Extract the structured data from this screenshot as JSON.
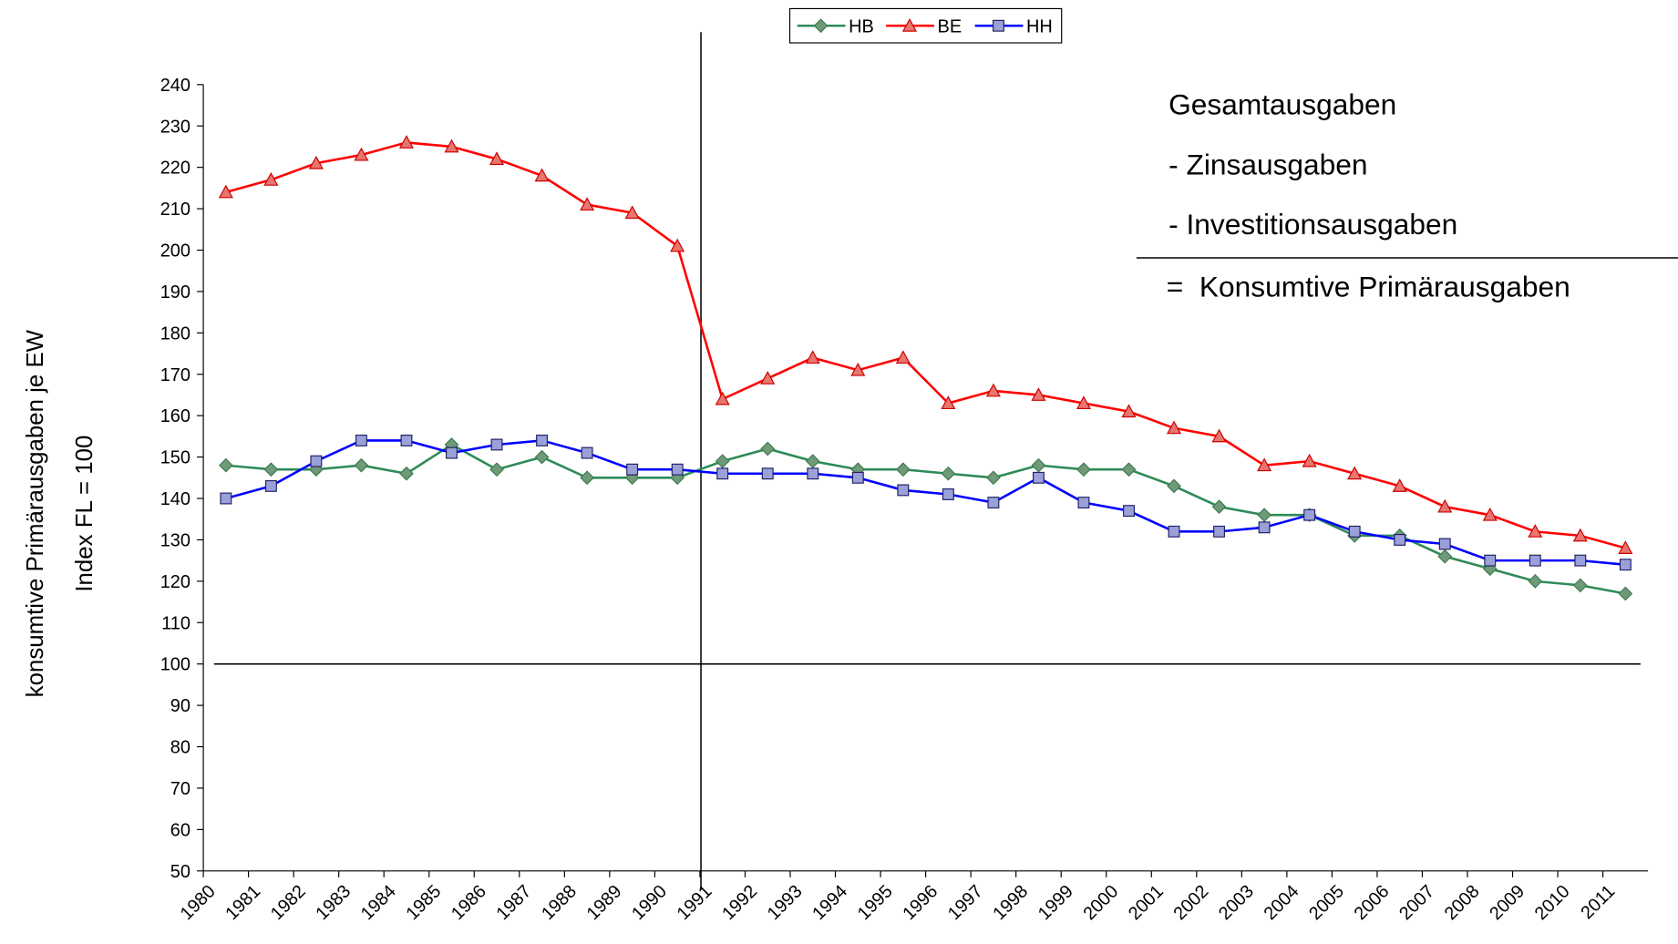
{
  "chart_data": {
    "type": "line",
    "y_label_lines": [
      "konsumtive Primärausgaben je EW",
      "Index FL = 100"
    ],
    "annotations": [
      "Gesamtausgaben",
      "- Zinsausgaben",
      "- Investitionsausgaben",
      "=  Konsumtive Primärausgaben"
    ],
    "categories": [
      "1980",
      "1981",
      "1982",
      "1983",
      "1984",
      "1985",
      "1986",
      "1987",
      "1988",
      "1989",
      "1990",
      "1991",
      "1992",
      "1993",
      "1994",
      "1995",
      "1996",
      "1997",
      "1998",
      "1999",
      "2000",
      "2001",
      "2002",
      "2003",
      "2004",
      "2005",
      "2006",
      "2007",
      "2008",
      "2009",
      "2010",
      "2011"
    ],
    "series": [
      {
        "name": "HB",
        "color": "#2e8b57",
        "marker": "diamond",
        "values": [
          148,
          147,
          147,
          148,
          146,
          153,
          147,
          150,
          145,
          145,
          145,
          149,
          152,
          149,
          147,
          147,
          146,
          145,
          148,
          147,
          147,
          143,
          138,
          136,
          136,
          131,
          131,
          126,
          123,
          120,
          119,
          117
        ]
      },
      {
        "name": "BE",
        "color": "#ff0000",
        "marker": "triangle",
        "values": [
          214,
          217,
          221,
          223,
          226,
          225,
          222,
          218,
          211,
          209,
          201,
          164,
          169,
          174,
          171,
          174,
          163,
          166,
          165,
          163,
          161,
          157,
          155,
          148,
          149,
          146,
          143,
          138,
          136,
          132,
          131,
          128
        ]
      },
      {
        "name": "HH",
        "color": "#0000ff",
        "marker": "square",
        "values": [
          140,
          143,
          149,
          154,
          154,
          151,
          153,
          154,
          151,
          147,
          147,
          146,
          146,
          146,
          145,
          142,
          141,
          139,
          145,
          139,
          137,
          132,
          132,
          133,
          136,
          132,
          130,
          129,
          125,
          125,
          125,
          124
        ]
      }
    ],
    "reference_line": 100,
    "ylim": [
      50,
      240
    ],
    "yticks": [
      50,
      60,
      70,
      80,
      90,
      100,
      110,
      120,
      130,
      140,
      150,
      160,
      170,
      180,
      190,
      200,
      210,
      220,
      230,
      240
    ]
  }
}
